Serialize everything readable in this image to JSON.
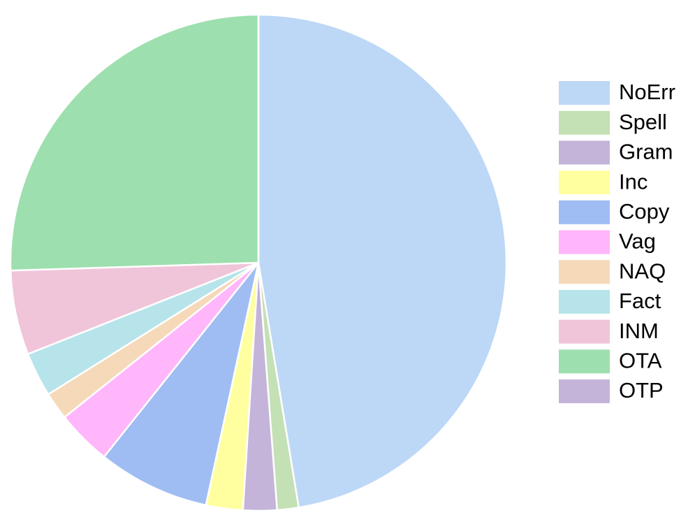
{
  "chart_data": {
    "type": "pie",
    "categories": [
      "NoErr",
      "Spell",
      "Gram",
      "Inc",
      "Copy",
      "Vag",
      "NAQ",
      "Fact",
      "INM",
      "OTA",
      "OTP"
    ],
    "values": [
      47.4,
      1.4,
      2.2,
      2.4,
      7.3,
      3.6,
      1.8,
      2.9,
      5.5,
      25.5,
      0
    ],
    "colors": [
      "#bdd7f6",
      "#c4e0b5",
      "#c4b4d9",
      "#ffffa0",
      "#9fbdf2",
      "#ffb6fa",
      "#f5d9b9",
      "#b6e4ea",
      "#f0c5d9",
      "#9ddfae",
      "#c4b4d9"
    ],
    "start_angle": 90,
    "direction": "clockwise",
    "legend": "right"
  }
}
